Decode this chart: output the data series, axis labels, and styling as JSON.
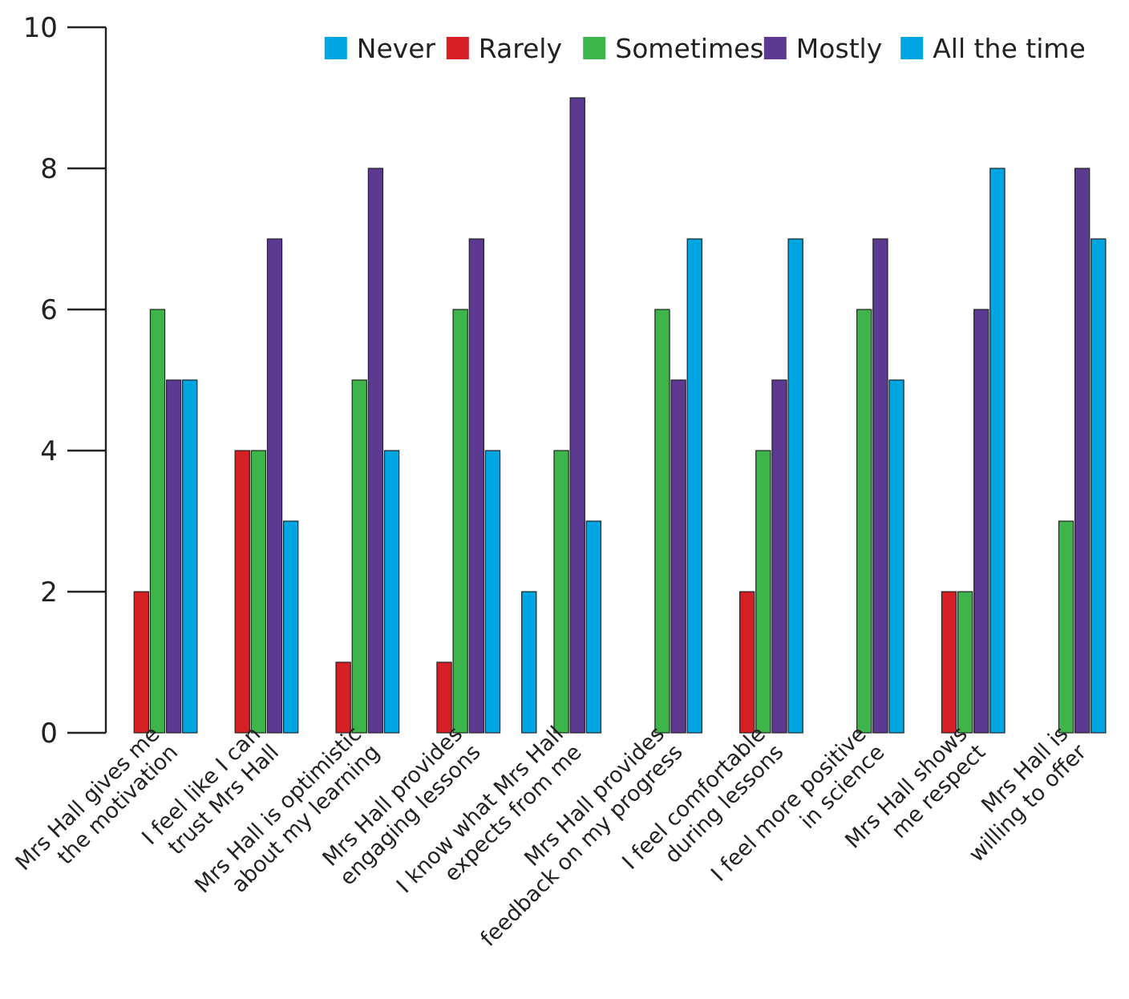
{
  "chart_data": {
    "type": "bar",
    "categories": [
      "Mrs Hall gives me\nthe motivation",
      "I feel like I can\ntrust Mrs Hall",
      "Mrs Hall is optimistic\nabout my learning",
      "Mrs Hall provides\nengaging lessons",
      "I know what Mrs Hall\nexpects from me",
      "Mrs Hall provides\nfeedback on my progress",
      "I feel comfortable\nduring lessons",
      "I feel more positive\nin science",
      "Mrs Hall shows\nme respect",
      "Mrs Hall is\nwilling to offer"
    ],
    "series": [
      {
        "name": "Never",
        "color": "#00a6e2",
        "values": [
          0,
          0,
          0,
          0,
          2,
          0,
          0,
          0,
          0,
          0
        ]
      },
      {
        "name": "Rarely",
        "color": "#d71f26",
        "values": [
          2,
          4,
          1,
          1,
          0,
          0,
          2,
          0,
          2,
          0
        ]
      },
      {
        "name": "Sometimes",
        "color": "#3db54a",
        "values": [
          6,
          4,
          5,
          6,
          4,
          6,
          4,
          6,
          2,
          3
        ]
      },
      {
        "name": "Mostly",
        "color": "#5c3a92",
        "values": [
          5,
          7,
          8,
          7,
          9,
          5,
          5,
          7,
          6,
          8
        ]
      },
      {
        "name": "All the time",
        "color": "#00a6e2",
        "values": [
          5,
          3,
          4,
          4,
          3,
          7,
          7,
          5,
          8,
          7
        ]
      }
    ],
    "ylim": [
      0,
      10
    ],
    "yticks": [
      0,
      2,
      4,
      6,
      8,
      10
    ],
    "grid": false,
    "legend": "top right"
  }
}
